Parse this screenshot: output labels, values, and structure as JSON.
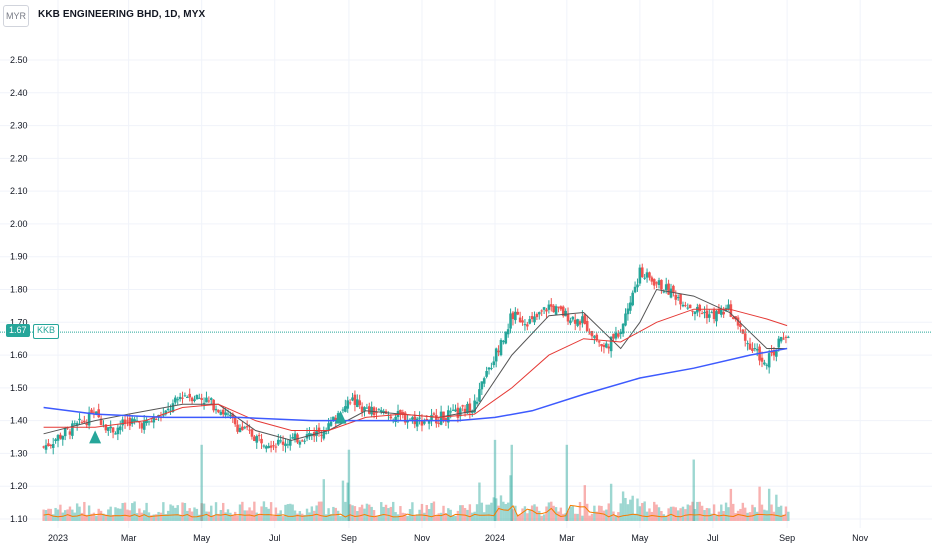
{
  "header": {
    "currency": "MYR",
    "title": "KKB ENGINEERING BHD, 1D, MYX"
  },
  "last_price": {
    "value": "1.67",
    "symbol": "KKB"
  },
  "colors": {
    "up": "#26a69a",
    "down": "#ef5350",
    "ma_fast": "#555555",
    "ma_mid": "#e53935",
    "ma_slow": "#3d5afe",
    "vol_ma": "#f57c00",
    "grid": "#f0f3fa",
    "price_line": "#26a69a"
  },
  "chart_data": {
    "type": "candlestick",
    "title": "KKB ENGINEERING BHD, 1D, MYX",
    "ylim": [
      1.07,
      2.58
    ],
    "y_ticks": [
      "2.50",
      "2.40",
      "2.30",
      "2.20",
      "2.10",
      "2.00",
      "1.90",
      "1.80",
      "1.70",
      "1.60",
      "1.50",
      "1.40",
      "1.30",
      "1.20",
      "1.10"
    ],
    "x_ticks": [
      "2023",
      "Mar",
      "May",
      "Jul",
      "Sep",
      "Nov",
      "2024",
      "Mar",
      "May",
      "Jul",
      "Sep",
      "Nov"
    ],
    "x_tick_dates": [
      "2023-01-01",
      "2023-03-01",
      "2023-05-01",
      "2023-07-01",
      "2023-09-01",
      "2023-11-01",
      "2024-01-01",
      "2024-03-01",
      "2024-05-01",
      "2024-07-01",
      "2024-09-01",
      "2024-11-01"
    ],
    "last_price": 1.67,
    "closes": [
      {
        "date": "2022-12-20",
        "close": 1.32
      },
      {
        "date": "2023-01-01",
        "close": 1.35
      },
      {
        "date": "2023-01-15",
        "close": 1.38
      },
      {
        "date": "2023-02-01",
        "close": 1.42
      },
      {
        "date": "2023-02-15",
        "close": 1.37
      },
      {
        "date": "2023-03-01",
        "close": 1.4
      },
      {
        "date": "2023-03-15",
        "close": 1.39
      },
      {
        "date": "2023-04-01",
        "close": 1.42
      },
      {
        "date": "2023-04-15",
        "close": 1.48
      },
      {
        "date": "2023-05-01",
        "close": 1.47
      },
      {
        "date": "2023-05-15",
        "close": 1.44
      },
      {
        "date": "2023-06-01",
        "close": 1.38
      },
      {
        "date": "2023-06-15",
        "close": 1.35
      },
      {
        "date": "2023-07-01",
        "close": 1.33
      },
      {
        "date": "2023-07-15",
        "close": 1.34
      },
      {
        "date": "2023-08-01",
        "close": 1.36
      },
      {
        "date": "2023-08-15",
        "close": 1.38
      },
      {
        "date": "2023-09-01",
        "close": 1.47
      },
      {
        "date": "2023-09-15",
        "close": 1.43
      },
      {
        "date": "2023-10-01",
        "close": 1.42
      },
      {
        "date": "2023-10-15",
        "close": 1.41
      },
      {
        "date": "2023-11-01",
        "close": 1.4
      },
      {
        "date": "2023-11-15",
        "close": 1.41
      },
      {
        "date": "2023-12-01",
        "close": 1.42
      },
      {
        "date": "2023-12-15",
        "close": 1.45
      },
      {
        "date": "2024-01-01",
        "close": 1.6
      },
      {
        "date": "2024-01-15",
        "close": 1.72
      },
      {
        "date": "2024-02-01",
        "close": 1.7
      },
      {
        "date": "2024-02-15",
        "close": 1.75
      },
      {
        "date": "2024-03-01",
        "close": 1.72
      },
      {
        "date": "2024-03-15",
        "close": 1.7
      },
      {
        "date": "2024-04-01",
        "close": 1.62
      },
      {
        "date": "2024-04-15",
        "close": 1.68
      },
      {
        "date": "2024-05-01",
        "close": 1.85
      },
      {
        "date": "2024-05-15",
        "close": 1.82
      },
      {
        "date": "2024-06-01",
        "close": 1.78
      },
      {
        "date": "2024-06-15",
        "close": 1.74
      },
      {
        "date": "2024-07-01",
        "close": 1.72
      },
      {
        "date": "2024-07-15",
        "close": 1.74
      },
      {
        "date": "2024-08-01",
        "close": 1.62
      },
      {
        "date": "2024-08-15",
        "close": 1.58
      },
      {
        "date": "2024-09-01",
        "close": 1.67
      }
    ],
    "series": [
      {
        "values": [
          [
            "2022-12-20",
            1.36
          ],
          [
            "2023-02-01",
            1.4
          ],
          [
            "2023-03-01",
            1.42
          ],
          [
            "2023-04-15",
            1.45
          ],
          [
            "2023-05-15",
            1.45
          ],
          [
            "2023-06-15",
            1.37
          ],
          [
            "2023-07-15",
            1.34
          ],
          [
            "2023-08-15",
            1.37
          ],
          [
            "2023-09-15",
            1.43
          ],
          [
            "2023-10-15",
            1.42
          ],
          [
            "2023-11-15",
            1.41
          ],
          [
            "2023-12-15",
            1.43
          ],
          [
            "2024-01-15",
            1.6
          ],
          [
            "2024-02-15",
            1.72
          ],
          [
            "2024-03-15",
            1.73
          ],
          [
            "2024-04-15",
            1.62
          ],
          [
            "2024-05-01",
            1.7
          ],
          [
            "2024-05-15",
            1.8
          ],
          [
            "2024-06-15",
            1.78
          ],
          [
            "2024-07-15",
            1.73
          ],
          [
            "2024-08-15",
            1.62
          ],
          [
            "2024-09-01",
            1.62
          ]
        ]
      },
      {
        "values": [
          [
            "2022-12-20",
            1.38
          ],
          [
            "2023-02-01",
            1.38
          ],
          [
            "2023-03-15",
            1.4
          ],
          [
            "2023-04-15",
            1.44
          ],
          [
            "2023-05-15",
            1.45
          ],
          [
            "2023-06-15",
            1.4
          ],
          [
            "2023-07-15",
            1.37
          ],
          [
            "2023-08-15",
            1.37
          ],
          [
            "2023-09-15",
            1.41
          ],
          [
            "2023-10-15",
            1.42
          ],
          [
            "2023-11-15",
            1.41
          ],
          [
            "2023-12-15",
            1.42
          ],
          [
            "2024-01-15",
            1.5
          ],
          [
            "2024-02-15",
            1.6
          ],
          [
            "2024-03-15",
            1.65
          ],
          [
            "2024-04-15",
            1.64
          ],
          [
            "2024-05-15",
            1.7
          ],
          [
            "2024-06-15",
            1.74
          ],
          [
            "2024-07-15",
            1.74
          ],
          [
            "2024-08-15",
            1.71
          ],
          [
            "2024-09-01",
            1.69
          ]
        ]
      },
      {
        "values": [
          [
            "2022-12-20",
            1.44
          ],
          [
            "2023-02-01",
            1.42
          ],
          [
            "2023-04-01",
            1.41
          ],
          [
            "2023-06-01",
            1.41
          ],
          [
            "2023-08-01",
            1.4
          ],
          [
            "2023-10-01",
            1.4
          ],
          [
            "2023-12-01",
            1.4
          ],
          [
            "2024-01-01",
            1.41
          ],
          [
            "2024-02-01",
            1.43
          ],
          [
            "2024-03-15",
            1.48
          ],
          [
            "2024-05-01",
            1.53
          ],
          [
            "2024-06-15",
            1.56
          ],
          [
            "2024-08-01",
            1.6
          ],
          [
            "2024-09-01",
            1.62
          ]
        ]
      }
    ],
    "volume_peaks": [
      {
        "date": "2023-05-01",
        "value": 0.31
      },
      {
        "date": "2023-09-01",
        "value": 0.29
      },
      {
        "date": "2024-01-01",
        "value": 0.33
      },
      {
        "date": "2024-01-15",
        "value": 0.31
      },
      {
        "date": "2024-03-01",
        "value": 0.31
      },
      {
        "date": "2024-06-15",
        "value": 0.25
      }
    ],
    "signals": [
      {
        "date": "2023-02-01",
        "type": "buy"
      },
      {
        "date": "2023-08-25",
        "type": "buy"
      }
    ]
  }
}
